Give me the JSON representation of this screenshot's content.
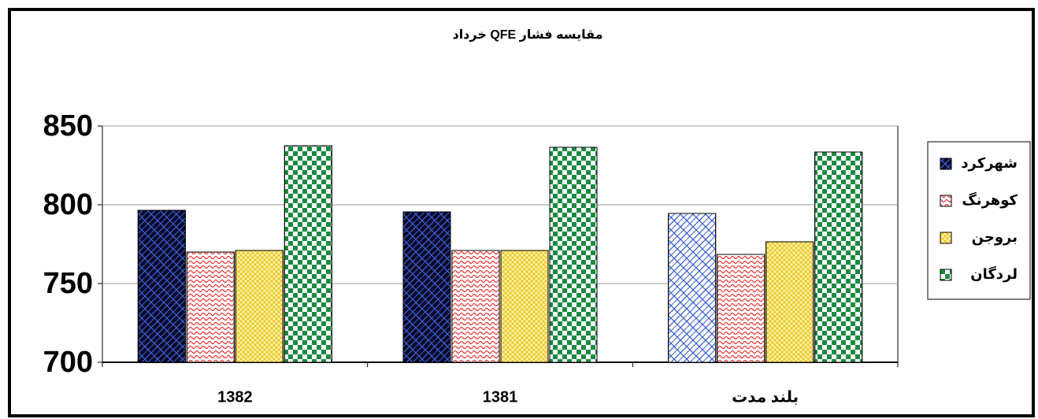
{
  "chart_data": {
    "type": "bar",
    "title": "مقایسه فشار QFE خرداد",
    "categories": [
      "1382",
      "1381",
      "بلند مدت"
    ],
    "series": [
      {
        "name": "شهرکرد",
        "color": "#0a0a2a",
        "colors": [
          "#0a0a2a",
          "#0a0a2a",
          "#ffffff"
        ],
        "values": [
          796.5,
          795.5,
          794.5
        ]
      },
      {
        "name": "کوهرنگ",
        "color": "#ffffff",
        "values": [
          770,
          771,
          768.5
        ]
      },
      {
        "name": "بروجن",
        "color": "#fff3a0",
        "values": [
          771,
          771,
          776.5
        ]
      },
      {
        "name": "لردگان",
        "color": "#ffffff",
        "values": [
          837.5,
          836.5,
          833.5
        ]
      }
    ],
    "ylim": [
      700,
      850
    ],
    "yticks": [
      700,
      750,
      800,
      850
    ],
    "grid": true,
    "legend": "right"
  }
}
